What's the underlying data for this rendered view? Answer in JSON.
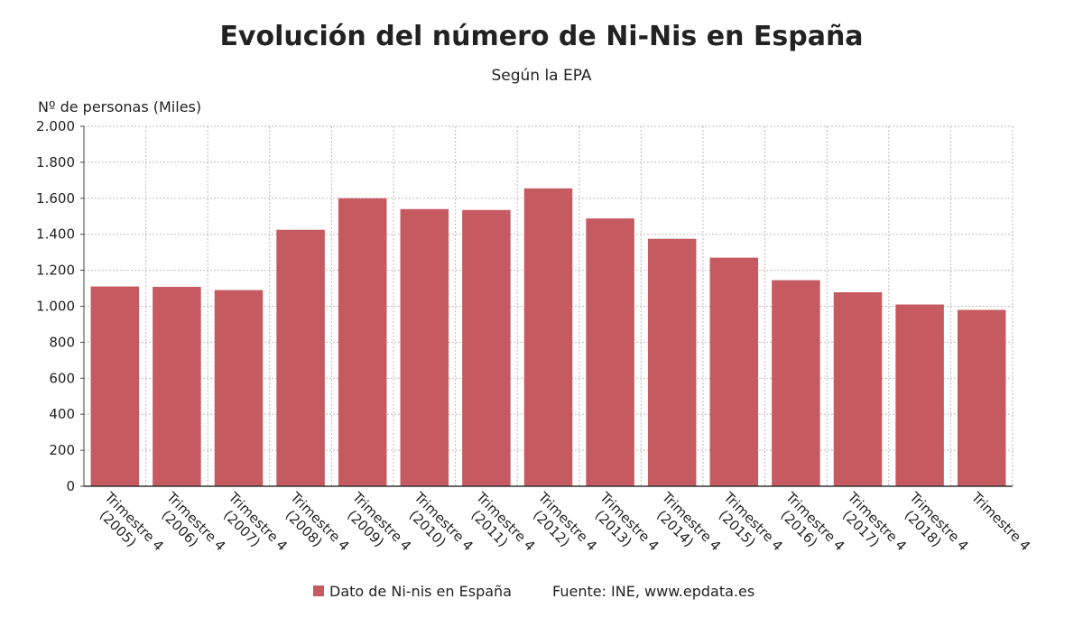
{
  "chart_data": {
    "type": "bar",
    "title": "Evolución del número de Ni-Nis en España",
    "subtitle": "Según la EPA",
    "y_label": "Nº de personas (Miles)",
    "source": "Fuente: INE, www.epdata.es",
    "categories": [
      "Trimestre 4 (2005)",
      "Trimestre 4 (2006)",
      "Trimestre 4 (2007)",
      "Trimestre 4 (2008)",
      "Trimestre 4 (2009)",
      "Trimestre 4 (2010)",
      "Trimestre 4 (2011)",
      "Trimestre 4 (2012)",
      "Trimestre 4 (2013)",
      "Trimestre 4 (2014)",
      "Trimestre 4 (2015)",
      "Trimestre 4 (2016)",
      "Trimestre 4 (2017)",
      "Trimestre 4 (2018)",
      "Trimestre 4"
    ],
    "series": [
      {
        "name": "Dato de Ni-nis en España",
        "color": "#c55a60",
        "values": [
          1110,
          1108,
          1090,
          1425,
          1600,
          1540,
          1535,
          1655,
          1488,
          1375,
          1270,
          1145,
          1078,
          1010,
          980
        ]
      }
    ],
    "ylim": [
      0,
      2000
    ],
    "yticks": [
      0,
      200,
      400,
      600,
      800,
      {
        "value": 1000,
        "label": "1.000"
      },
      {
        "value": 1200,
        "label": "1.200"
      },
      {
        "value": 1400,
        "label": "1.400"
      },
      {
        "value": 1600,
        "label": "1.600"
      },
      {
        "value": 1800,
        "label": "1.800"
      },
      {
        "value": 2000,
        "label": "2.000"
      }
    ],
    "grid": true
  }
}
